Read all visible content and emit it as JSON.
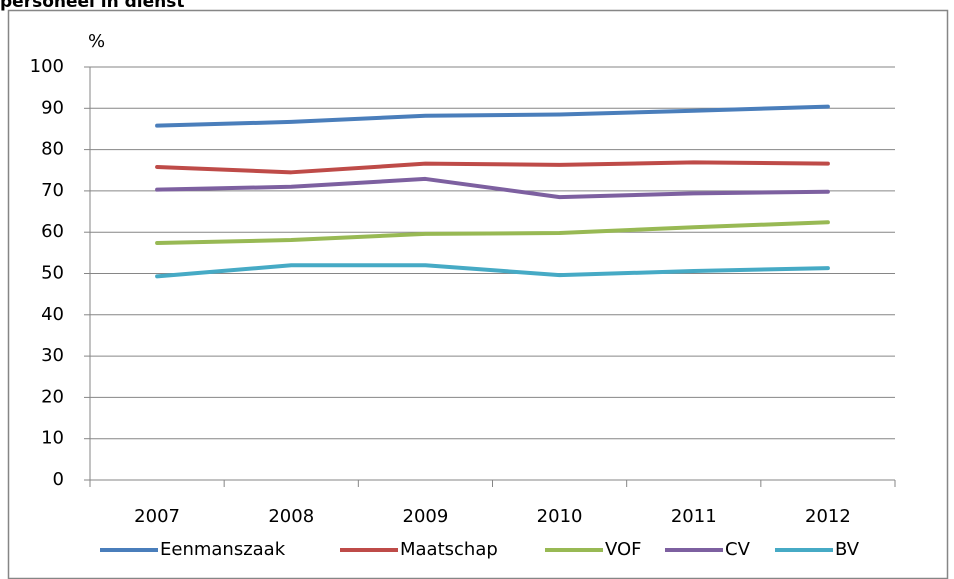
{
  "chart_data": {
    "type": "line",
    "title": "personeel in dienst",
    "y_label": "%",
    "categories": [
      "2007",
      "2008",
      "2009",
      "2010",
      "2011",
      "2012"
    ],
    "series": [
      {
        "name": "Eenmanszaak",
        "color": "#4a7ebb",
        "values": [
          85.8,
          86.7,
          88.2,
          88.5,
          89.4,
          90.4
        ]
      },
      {
        "name": "Maatschap",
        "color": "#be4b48",
        "values": [
          75.8,
          74.5,
          76.6,
          76.3,
          76.9,
          76.6
        ]
      },
      {
        "name": "VOF",
        "color": "#98b954",
        "values": [
          57.4,
          58.1,
          59.6,
          59.8,
          61.2,
          62.4
        ]
      },
      {
        "name": "CV",
        "color": "#7d60a0",
        "values": [
          70.3,
          71.0,
          72.9,
          68.5,
          69.4,
          69.8
        ]
      },
      {
        "name": "BV",
        "color": "#46aac5",
        "values": [
          49.3,
          52.0,
          52.0,
          49.6,
          50.6,
          51.3
        ]
      }
    ],
    "ylim": [
      0,
      100
    ],
    "yticks": [
      0,
      10,
      20,
      30,
      40,
      50,
      60,
      70,
      80,
      90,
      100
    ],
    "grid": true,
    "legend": "bottom"
  }
}
